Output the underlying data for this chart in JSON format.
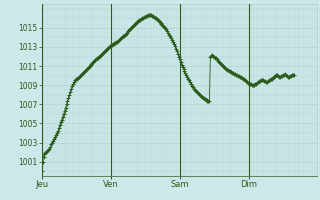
{
  "background_color": "#cce8e8",
  "plot_bg_color": "#cce8e8",
  "line_color": "#2d5a1b",
  "marker_color": "#2d5a1b",
  "grid_color": "#b0d0d0",
  "tick_label_color": "#2d5a1b",
  "axis_line_color": "#2d5a1b",
  "day_labels": [
    "Jeu",
    "Ven",
    "Sam",
    "Dim"
  ],
  "day_positions": [
    0,
    72,
    144,
    216
  ],
  "xlim": [
    0,
    287
  ],
  "ylim": [
    999.5,
    1017.5
  ],
  "yticks": [
    1001,
    1003,
    1005,
    1007,
    1009,
    1011,
    1013,
    1015
  ],
  "pressure_values": [
    1000.0,
    1001.0,
    1001.5,
    1001.8,
    1001.9,
    1002.0,
    1002.1,
    1002.2,
    1002.3,
    1002.5,
    1002.8,
    1003.0,
    1003.2,
    1003.4,
    1003.6,
    1003.8,
    1004.0,
    1004.2,
    1004.5,
    1004.8,
    1005.1,
    1005.4,
    1005.7,
    1006.0,
    1006.3,
    1006.6,
    1007.0,
    1007.3,
    1007.7,
    1008.0,
    1008.3,
    1008.6,
    1008.9,
    1009.1,
    1009.3,
    1009.5,
    1009.6,
    1009.7,
    1009.8,
    1009.9,
    1010.0,
    1010.1,
    1010.2,
    1010.3,
    1010.4,
    1010.5,
    1010.6,
    1010.7,
    1010.8,
    1010.9,
    1011.0,
    1011.1,
    1011.2,
    1011.3,
    1011.4,
    1011.5,
    1011.6,
    1011.7,
    1011.8,
    1011.9,
    1012.0,
    1012.1,
    1012.2,
    1012.3,
    1012.4,
    1012.5,
    1012.6,
    1012.7,
    1012.8,
    1012.9,
    1013.0,
    1013.1,
    1013.1,
    1013.2,
    1013.3,
    1013.3,
    1013.4,
    1013.4,
    1013.5,
    1013.5,
    1013.6,
    1013.7,
    1013.8,
    1013.9,
    1014.0,
    1014.1,
    1014.2,
    1014.3,
    1014.4,
    1014.5,
    1014.7,
    1014.8,
    1014.9,
    1015.0,
    1015.1,
    1015.2,
    1015.3,
    1015.4,
    1015.5,
    1015.6,
    1015.6,
    1015.7,
    1015.8,
    1015.8,
    1015.9,
    1016.0,
    1016.0,
    1016.1,
    1016.1,
    1016.2,
    1016.2,
    1016.3,
    1016.3,
    1016.3,
    1016.3,
    1016.2,
    1016.2,
    1016.1,
    1016.0,
    1016.0,
    1015.9,
    1015.8,
    1015.7,
    1015.6,
    1015.5,
    1015.4,
    1015.3,
    1015.2,
    1015.1,
    1015.0,
    1014.9,
    1014.7,
    1014.5,
    1014.3,
    1014.1,
    1013.9,
    1013.7,
    1013.5,
    1013.3,
    1013.1,
    1012.8,
    1012.6,
    1012.3,
    1012.0,
    1011.7,
    1011.4,
    1011.1,
    1010.9,
    1010.7,
    1010.5,
    1010.3,
    1010.1,
    1009.9,
    1009.7,
    1009.5,
    1009.3,
    1009.1,
    1008.9,
    1008.8,
    1008.6,
    1008.5,
    1008.4,
    1008.3,
    1008.2,
    1008.1,
    1008.0,
    1007.9,
    1007.8,
    1007.7,
    1007.7,
    1007.6,
    1007.5,
    1007.5,
    1007.4,
    1007.4,
    1007.3,
    1012.0,
    1012.1,
    1012.2,
    1012.1,
    1012.0,
    1011.9,
    1011.8,
    1011.7,
    1011.5,
    1011.4,
    1011.3,
    1011.2,
    1011.1,
    1011.0,
    1010.9,
    1010.8,
    1010.7,
    1010.6,
    1010.6,
    1010.5,
    1010.5,
    1010.4,
    1010.4,
    1010.3,
    1010.3,
    1010.2,
    1010.2,
    1010.1,
    1010.1,
    1010.0,
    1010.0,
    1009.9,
    1009.9,
    1009.8,
    1009.7,
    1009.6,
    1009.5,
    1009.4,
    1009.3,
    1009.2,
    1009.2,
    1009.1,
    1009.1,
    1009.0,
    1009.0,
    1009.0,
    1009.0,
    1009.1,
    1009.1,
    1009.2,
    1009.3,
    1009.4,
    1009.4,
    1009.5,
    1009.5,
    1009.5,
    1009.4,
    1009.4,
    1009.3,
    1009.3,
    1009.4,
    1009.5,
    1009.5,
    1009.6,
    1009.7,
    1009.8,
    1009.9,
    1010.0,
    1010.1,
    1010.1,
    1010.1,
    1010.0,
    1009.9,
    1009.9,
    1010.0,
    1010.0,
    1010.1,
    1010.1,
    1010.2,
    1010.1,
    1010.0,
    1009.9,
    1009.9,
    1010.0,
    1010.0,
    1010.1,
    1010.1,
    1010.1
  ]
}
